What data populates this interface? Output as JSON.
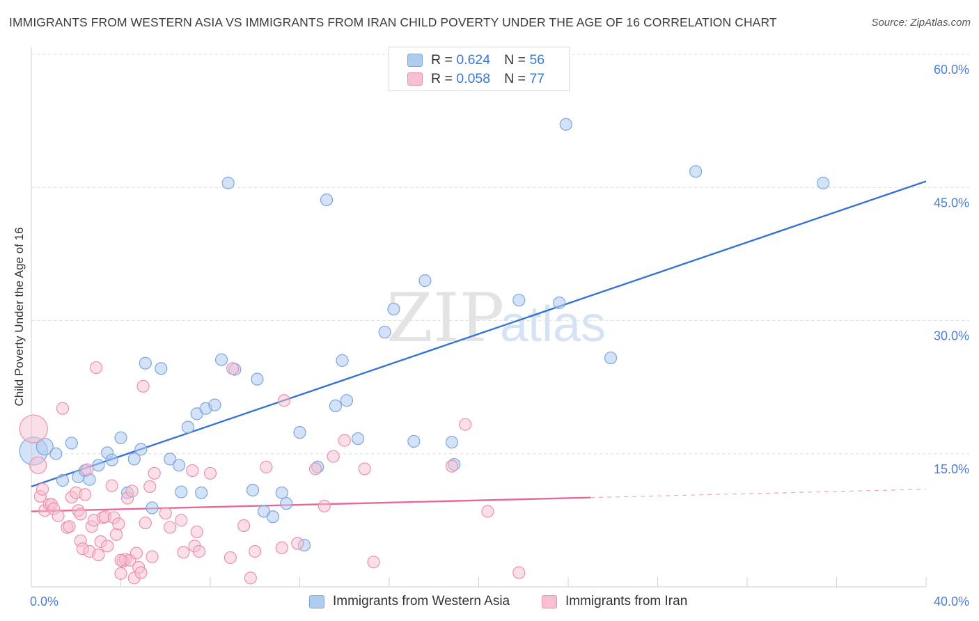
{
  "header": {
    "title": "IMMIGRANTS FROM WESTERN ASIA VS IMMIGRANTS FROM IRAN CHILD POVERTY UNDER THE AGE OF 16 CORRELATION CHART",
    "source": "Source: ZipAtlas.com"
  },
  "watermark": {
    "zip": "ZIP",
    "atlas": "atlas"
  },
  "legend": {
    "rows": [
      {
        "r_label": "R =",
        "r_value": "0.624",
        "n_label": "N =",
        "n_value": "56"
      },
      {
        "r_label": "R =",
        "r_value": "0.058",
        "n_label": "N =",
        "n_value": "77"
      }
    ]
  },
  "bottom_legend": {
    "items": [
      {
        "label": "Immigrants from Western Asia"
      },
      {
        "label": "Immigrants from Iran"
      }
    ]
  },
  "colors": {
    "blue_fill": "#aecbf0",
    "blue_stroke": "#7aa6de",
    "blue_line": "#3574d4",
    "pink_fill": "#f7bfd0",
    "pink_stroke": "#ec8fae",
    "pink_line": "#e8679a",
    "tick_text": "#4a7fd0",
    "grid": "#dcdcdc"
  },
  "chart_data": {
    "type": "scatter",
    "ylabel": "Child Poverty Under the Age of 16",
    "xlim": [
      0,
      40
    ],
    "ylim": [
      0,
      60
    ],
    "x_tick_labels": [
      "0.0%",
      "40.0%"
    ],
    "y_ticks": [
      {
        "value": 15,
        "label": "15.0%"
      },
      {
        "value": 30,
        "label": "30.0%"
      },
      {
        "value": 45,
        "label": "45.0%"
      },
      {
        "value": 60,
        "label": "60.0%"
      }
    ],
    "grid": "horizontal dashed",
    "series": [
      {
        "name": "Immigrants from Western Asia",
        "color": "#aecbf0",
        "trend": {
          "x": [
            0,
            40
          ],
          "y": [
            11.3,
            45.7
          ],
          "dashed_from_x": null
        },
        "points": [
          [
            0.1,
            15.3,
            4
          ],
          [
            0.6,
            15.8,
            2
          ],
          [
            1.1,
            15.0,
            1
          ],
          [
            1.4,
            12.0,
            1
          ],
          [
            1.8,
            16.2,
            1
          ],
          [
            2.1,
            12.4,
            1
          ],
          [
            2.4,
            13.1,
            1
          ],
          [
            2.6,
            12.1,
            1
          ],
          [
            3.0,
            13.7,
            1
          ],
          [
            3.4,
            15.1,
            1
          ],
          [
            3.6,
            14.3,
            1
          ],
          [
            4.0,
            16.8,
            1
          ],
          [
            4.3,
            10.6,
            1
          ],
          [
            4.6,
            14.4,
            1
          ],
          [
            4.9,
            15.5,
            1
          ],
          [
            5.1,
            25.2,
            1
          ],
          [
            5.4,
            8.9,
            1
          ],
          [
            5.8,
            24.6,
            1
          ],
          [
            6.2,
            14.4,
            1
          ],
          [
            6.6,
            13.7,
            1
          ],
          [
            6.7,
            10.7,
            1
          ],
          [
            7.0,
            18.0,
            1
          ],
          [
            7.4,
            19.5,
            1
          ],
          [
            7.6,
            10.6,
            1
          ],
          [
            7.8,
            20.1,
            1
          ],
          [
            8.2,
            20.5,
            1
          ],
          [
            8.5,
            25.6,
            1
          ],
          [
            8.8,
            45.5,
            1
          ],
          [
            9.1,
            24.5,
            1
          ],
          [
            9.9,
            10.9,
            1
          ],
          [
            10.1,
            23.4,
            1
          ],
          [
            10.4,
            8.5,
            1
          ],
          [
            10.8,
            7.9,
            1
          ],
          [
            11.2,
            10.6,
            1
          ],
          [
            11.4,
            9.4,
            1
          ],
          [
            12.0,
            17.4,
            1
          ],
          [
            12.2,
            4.7,
            1
          ],
          [
            12.8,
            13.5,
            1
          ],
          [
            13.2,
            43.6,
            1
          ],
          [
            13.6,
            20.4,
            1
          ],
          [
            13.9,
            25.5,
            1
          ],
          [
            14.1,
            21.0,
            1
          ],
          [
            14.6,
            16.7,
            1
          ],
          [
            15.8,
            28.7,
            1
          ],
          [
            16.2,
            31.3,
            1
          ],
          [
            17.1,
            16.4,
            1
          ],
          [
            17.6,
            34.5,
            1
          ],
          [
            18.8,
            16.3,
            1
          ],
          [
            18.9,
            13.8,
            1
          ],
          [
            21.8,
            32.3,
            1
          ],
          [
            23.6,
            32.0,
            1
          ],
          [
            23.9,
            52.1,
            1
          ],
          [
            25.9,
            25.8,
            1
          ],
          [
            29.7,
            46.8,
            1
          ],
          [
            35.4,
            45.5,
            1
          ]
        ]
      },
      {
        "name": "Immigrants from Iran",
        "color": "#f7bfd0",
        "trend": {
          "x": [
            0,
            40
          ],
          "y": [
            8.5,
            11.0
          ],
          "dashed_from_x": 25.0
        },
        "points": [
          [
            0.1,
            17.8,
            4
          ],
          [
            0.3,
            13.7,
            2
          ],
          [
            0.4,
            10.2,
            1
          ],
          [
            0.5,
            11.0,
            1
          ],
          [
            0.6,
            8.6,
            1
          ],
          [
            0.8,
            9.3,
            1
          ],
          [
            0.9,
            9.3,
            1
          ],
          [
            1.0,
            8.8,
            1
          ],
          [
            1.2,
            8.0,
            1
          ],
          [
            1.4,
            20.1,
            1
          ],
          [
            1.6,
            6.7,
            1
          ],
          [
            1.7,
            6.8,
            1
          ],
          [
            1.8,
            10.1,
            1
          ],
          [
            2.0,
            10.6,
            1
          ],
          [
            2.1,
            8.6,
            1
          ],
          [
            2.2,
            5.2,
            1
          ],
          [
            2.3,
            4.3,
            1
          ],
          [
            2.4,
            10.4,
            1
          ],
          [
            2.5,
            13.2,
            1
          ],
          [
            2.6,
            4.0,
            1
          ],
          [
            2.7,
            6.8,
            1
          ],
          [
            2.8,
            7.5,
            1
          ],
          [
            2.9,
            24.7,
            1
          ],
          [
            3.0,
            3.6,
            1
          ],
          [
            3.1,
            5.1,
            1
          ],
          [
            3.2,
            7.8,
            1
          ],
          [
            3.3,
            7.9,
            1
          ],
          [
            3.4,
            4.6,
            1
          ],
          [
            3.6,
            11.4,
            1
          ],
          [
            3.7,
            7.8,
            1
          ],
          [
            3.8,
            5.9,
            1
          ],
          [
            3.9,
            7.1,
            1
          ],
          [
            4.0,
            1.5,
            1
          ],
          [
            4.1,
            2.9,
            1
          ],
          [
            4.2,
            3.1,
            1
          ],
          [
            4.3,
            10.0,
            1
          ],
          [
            4.4,
            3.0,
            1
          ],
          [
            4.5,
            10.8,
            1
          ],
          [
            4.6,
            1.0,
            1
          ],
          [
            4.7,
            3.8,
            1
          ],
          [
            4.8,
            2.2,
            1
          ],
          [
            4.9,
            1.6,
            1
          ],
          [
            5.0,
            22.6,
            1
          ],
          [
            5.1,
            7.2,
            1
          ],
          [
            5.3,
            11.3,
            1
          ],
          [
            5.4,
            3.4,
            1
          ],
          [
            5.5,
            12.8,
            1
          ],
          [
            6.2,
            6.7,
            1
          ],
          [
            6.7,
            7.5,
            1
          ],
          [
            6.8,
            3.9,
            1
          ],
          [
            7.2,
            13.1,
            1
          ],
          [
            7.3,
            4.6,
            1
          ],
          [
            7.4,
            6.2,
            1
          ],
          [
            7.5,
            4.0,
            1
          ],
          [
            8.0,
            12.8,
            1
          ],
          [
            8.9,
            3.3,
            1
          ],
          [
            9.0,
            24.6,
            1
          ],
          [
            9.5,
            6.9,
            1
          ],
          [
            9.8,
            1.0,
            1
          ],
          [
            10.0,
            4.0,
            1
          ],
          [
            10.5,
            13.5,
            1
          ],
          [
            11.2,
            4.4,
            1
          ],
          [
            11.3,
            21.0,
            1
          ],
          [
            11.9,
            4.9,
            1
          ],
          [
            12.7,
            13.3,
            1
          ],
          [
            13.1,
            9.1,
            1
          ],
          [
            13.5,
            14.7,
            1
          ],
          [
            14.0,
            16.5,
            1
          ],
          [
            14.9,
            13.3,
            1
          ],
          [
            15.3,
            2.8,
            1
          ],
          [
            18.8,
            13.6,
            1
          ],
          [
            19.4,
            18.3,
            1
          ],
          [
            20.4,
            8.5,
            1
          ],
          [
            21.8,
            1.6,
            1
          ],
          [
            4.0,
            3.0,
            1
          ],
          [
            6.0,
            8.3,
            1
          ],
          [
            2.2,
            8.2,
            1
          ]
        ]
      }
    ]
  }
}
